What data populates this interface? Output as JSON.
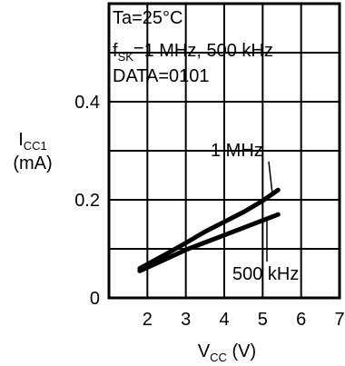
{
  "chart_data": {
    "type": "line",
    "title": "",
    "conditions": [
      "Ta=25°C",
      "DATA=0101"
    ],
    "condition_fsk": {
      "prefix": "f",
      "sub": "SK",
      "suffix": "=1 MHz, 500 kHz"
    },
    "y_axis": {
      "main": "I",
      "sub": "CC1",
      "unit": "(mA)"
    },
    "x_axis": {
      "main": "V",
      "sub": "CC",
      "unit": " (V)"
    },
    "xlim": [
      1,
      7
    ],
    "ylim": [
      0,
      0.6
    ],
    "x_ticks": [
      2,
      3,
      4,
      5,
      6,
      7
    ],
    "y_ticks": [
      0,
      0.2,
      0.4
    ],
    "x_tick_labels": [
      "2",
      "3",
      "4",
      "5",
      "6",
      "7"
    ],
    "y_tick_labels": [
      "0",
      "0.2",
      "0.4"
    ],
    "grid": {
      "x": [
        2,
        3,
        4,
        5,
        6
      ],
      "y": [
        0.1,
        0.2,
        0.3,
        0.4,
        0.5
      ]
    },
    "series": [
      {
        "name": "1 MHz",
        "x": [
          1.8,
          2.5,
          3.0,
          3.5,
          4.0,
          4.5,
          5.0,
          5.4
        ],
        "y": [
          0.06,
          0.09,
          0.112,
          0.135,
          0.155,
          0.175,
          0.198,
          0.22
        ]
      },
      {
        "name": "500 kHz",
        "x": [
          1.8,
          2.5,
          3.0,
          3.5,
          4.0,
          4.5,
          5.0,
          5.4
        ],
        "y": [
          0.055,
          0.08,
          0.098,
          0.113,
          0.128,
          0.143,
          0.158,
          0.17
        ]
      }
    ],
    "annotations": [
      "1 MHz",
      "500 kHz"
    ]
  }
}
